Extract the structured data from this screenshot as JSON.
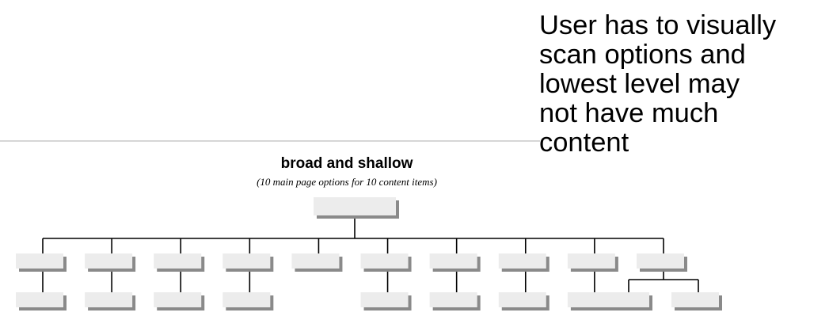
{
  "note": {
    "lines": [
      "User has to visually",
      "scan options and",
      "lowest level may",
      "not have much",
      "content"
    ]
  },
  "diagram": {
    "title": "broad and shallow",
    "subtitle": "(10 main page options for 10 content items)",
    "root": "main page",
    "level_one_count": 10,
    "children_per_option": [
      1,
      1,
      1,
      1,
      0,
      1,
      1,
      1,
      1,
      2
    ],
    "colors": {
      "box_fill": "#ececec",
      "box_shadow": "#8a8a8a",
      "connector": "#000000",
      "divider": "#bdbdbd"
    }
  }
}
